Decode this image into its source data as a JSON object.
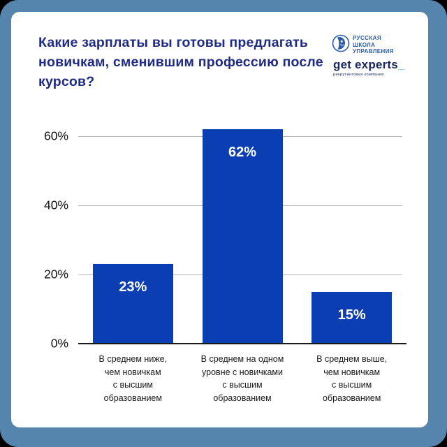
{
  "frame": {
    "outer_background": "#000000",
    "border_color": "#5585ad",
    "card_background": "#ffffff"
  },
  "header": {
    "title": "Какие зарплаты вы готовы предлагать новичкам, сменившим профессию после курсов?",
    "title_color": "#1f2a85"
  },
  "logos": {
    "rsu": {
      "line1": "РУССКАЯ",
      "line2": "ШКОЛА",
      "line3": "УПРАВЛЕНИЯ",
      "color": "#2e5ca6",
      "icon": "face-in-circle-logo"
    },
    "get_experts": {
      "wordmark": "get experts",
      "underscore": "_",
      "tagline": "рекрутинговая компания",
      "color": "#1b2960",
      "accent_color": "#35c4cf"
    }
  },
  "chart_data": {
    "type": "bar",
    "title": "Какие зарплаты вы готовы предлагать новичкам, сменившим профессию после курсов?",
    "categories": [
      "В среднем ниже, чем новичкам с высшим образованием",
      "В среднем на одном уровне с новичками с высшим образованием",
      "В среднем выше, чем новичкам с высшим образованием"
    ],
    "categories_wrapped": [
      [
        "В среднем ниже,",
        "чем новичкам",
        "с высшим",
        "образованием"
      ],
      [
        "В среднем на одном",
        "уровне с новичками",
        "с высшим",
        "образованием"
      ],
      [
        "В среднем выше,",
        "чем новичкам",
        "с высшим",
        "образованием"
      ]
    ],
    "values": [
      23,
      62,
      15
    ],
    "value_labels": [
      "23%",
      "62%",
      "15%"
    ],
    "yticks": [
      0,
      20,
      40,
      60
    ],
    "ytick_labels": [
      "0%",
      "20%",
      "40%",
      "60%"
    ],
    "ylim": [
      0,
      65
    ],
    "xlabel": "",
    "ylabel": "",
    "grid": true,
    "legend": false,
    "bar_color": "#0b3eb3",
    "value_label_color": "#ffffff",
    "gridline_color": "#b3b3b3",
    "axis_color": "#1a1a1a"
  }
}
